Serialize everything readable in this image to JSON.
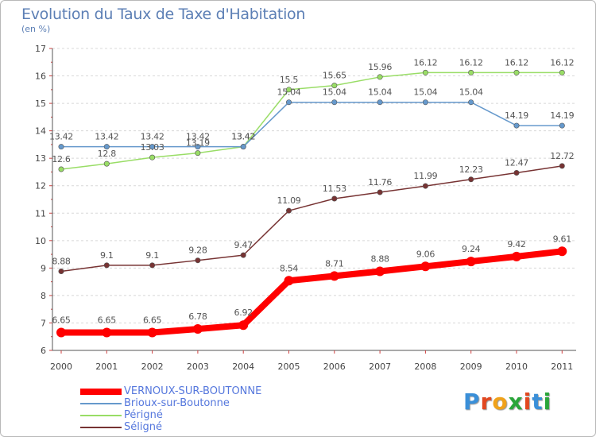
{
  "header": {
    "title": "Evolution du Taux de Taxe d'Habitation",
    "subtitle": "(en %)"
  },
  "logo": {
    "text": "Proxiti",
    "colors": [
      "#3a8fd8",
      "#e2471f",
      "#f0a21a",
      "#2aa63a",
      "#e2471f",
      "#3a8fd8",
      "#2aa63a"
    ]
  },
  "chart_data": {
    "type": "line",
    "x": [
      "2000",
      "2001",
      "2002",
      "2003",
      "2004",
      "2005",
      "2006",
      "2007",
      "2008",
      "2009",
      "2010",
      "2011"
    ],
    "ylim": [
      6,
      17
    ],
    "yticks": [
      "6",
      "7",
      "8",
      "9",
      "10",
      "11",
      "12",
      "13",
      "14",
      "15",
      "16",
      "17"
    ],
    "grid": "horizontal dashed",
    "legend_position": "bottom-left",
    "series": [
      {
        "name": "VERNOUX-SUR-BOUTONNE",
        "color": "#ff0000",
        "values": [
          6.65,
          6.65,
          6.65,
          6.78,
          6.92,
          8.54,
          8.71,
          8.88,
          9.06,
          9.24,
          9.42,
          9.61
        ],
        "labels": [
          "6.65",
          "6.65",
          "6.65",
          "6.78",
          "6.92",
          "8.54",
          "8.71",
          "8.88",
          "9.06",
          "9.24",
          "9.42",
          "9.61"
        ]
      },
      {
        "name": "Brioux-sur-Boutonne",
        "color": "#6699cc",
        "values": [
          13.42,
          13.42,
          13.42,
          13.42,
          13.42,
          15.04,
          15.04,
          15.04,
          15.04,
          15.04,
          14.19,
          14.19
        ],
        "labels": [
          "13.42",
          "13.42",
          "13.42",
          "13.42",
          "13.42",
          "15.04",
          "15.04",
          "15.04",
          "15.04",
          "15.04",
          "14.19",
          "14.19"
        ]
      },
      {
        "name": "Périgné",
        "color": "#99dd66",
        "values": [
          12.6,
          12.8,
          13.03,
          13.19,
          13.42,
          15.5,
          15.65,
          15.96,
          16.12,
          16.12,
          16.12,
          16.12
        ],
        "labels": [
          "12.6",
          "12.8",
          "13.03",
          "13.19",
          "13.42",
          "15.5",
          "15.65",
          "15.96",
          "16.12",
          "16.12",
          "16.12",
          "16.12"
        ]
      },
      {
        "name": "Séligné",
        "color": "#773333",
        "values": [
          8.88,
          9.1,
          9.1,
          9.28,
          9.47,
          11.09,
          11.53,
          11.76,
          11.99,
          12.23,
          12.47,
          12.72
        ],
        "labels": [
          "8.88",
          "9.1",
          "9.1",
          "9.28",
          "9.47",
          "11.09",
          "11.53",
          "11.76",
          "11.99",
          "12.23",
          "12.47",
          "12.72"
        ]
      }
    ]
  }
}
